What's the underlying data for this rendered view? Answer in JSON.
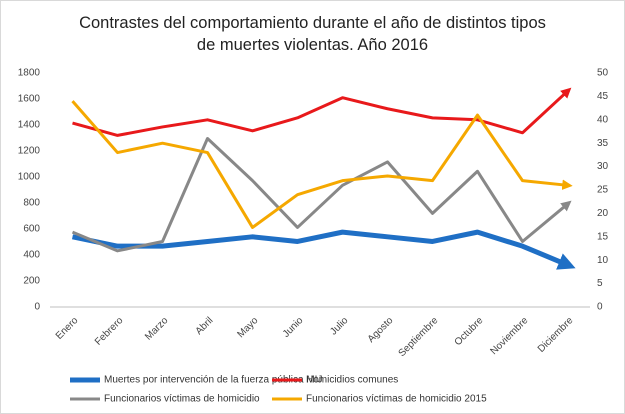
{
  "chart_data": {
    "type": "line",
    "title": "Contrastes del comportamiento durante el año de distintos tipos de muertes violentas. Año 2016",
    "categories": [
      "Enero",
      "Febrero",
      "Marzo",
      "Abril",
      "Mayo",
      "Junio",
      "Julio",
      "Agosto",
      "Septiembre",
      "Octubre",
      "Noviembre",
      "Diciembre"
    ],
    "series": [
      {
        "name": "Muertes por intervención de la fuerza pública MIJ",
        "color": "#1f6fc5",
        "axis": "y2",
        "values": [
          15,
          13,
          13,
          14,
          15,
          14,
          16,
          15,
          14,
          16,
          13,
          9
        ]
      },
      {
        "name": "Homicidios comunes",
        "color": "#e8191b",
        "values": [
          1415,
          1320,
          1385,
          1440,
          1355,
          1455,
          1610,
          1525,
          1455,
          1440,
          1340,
          1660
        ]
      },
      {
        "name": "Funcionarios víctimas de homicidio",
        "color": "#888888",
        "axis": "y2",
        "values": [
          16,
          12,
          14,
          36,
          27,
          17,
          26,
          31,
          20,
          29,
          14,
          22
        ]
      },
      {
        "name": "Funcionarios víctimas de homicidio 2015",
        "color": "#f5a800",
        "axis": "y2",
        "values": [
          44,
          33,
          35,
          33,
          17,
          24,
          27,
          28,
          27,
          41,
          27,
          26
        ]
      }
    ],
    "ylim": [
      0,
      1800
    ],
    "yticks": [
      0,
      200,
      400,
      600,
      800,
      1000,
      1200,
      1400,
      1600,
      1800
    ],
    "y2lim": [
      0,
      50
    ],
    "y2ticks": [
      0,
      5,
      10,
      15,
      20,
      25,
      30,
      35,
      40,
      45,
      50
    ],
    "legend": "bottom"
  }
}
